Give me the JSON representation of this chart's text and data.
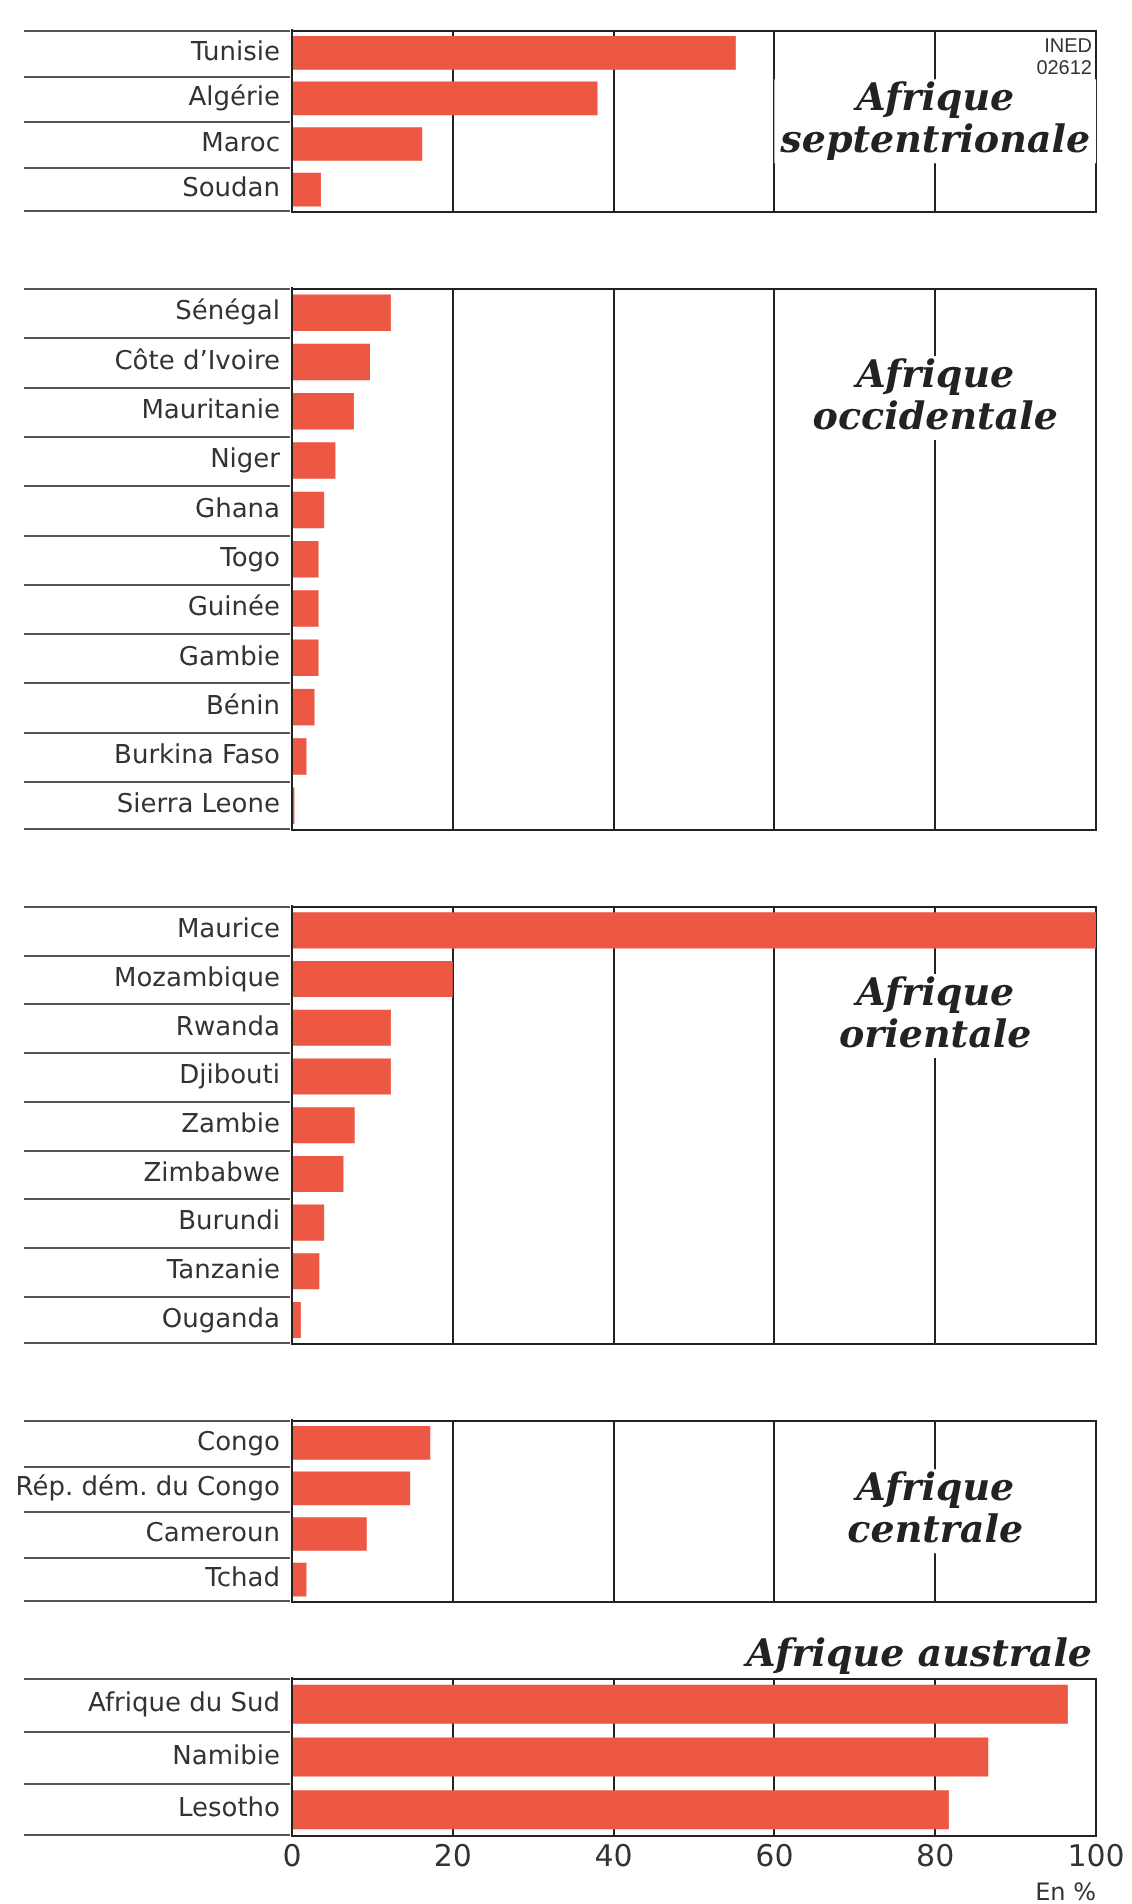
{
  "chart_data": [
    {
      "type": "bar",
      "orientation": "horizontal",
      "title": "Afrique septentrionale",
      "categories": [
        "Tunisie",
        "Algérie",
        "Maroc",
        "Soudan"
      ],
      "values": [
        55.2,
        38,
        16.2,
        3.6
      ],
      "color": "#ec5843",
      "xlim": [
        0,
        100
      ],
      "xticks": [
        0,
        20,
        40,
        60,
        80,
        100
      ],
      "grid": "x",
      "tick_labels": "y",
      "annotations": [
        "INED 02612"
      ]
    },
    {
      "type": "bar",
      "orientation": "horizontal",
      "title": "Afrique occidentale",
      "categories": [
        "Sénégal",
        "Côte d’Ivoire",
        "Mauritanie",
        "Niger",
        "Ghana",
        "Togo",
        "Guinée",
        "Gambie",
        "Bénin",
        "Burkina Faso",
        "Sierra Leone"
      ],
      "values": [
        12.3,
        9.7,
        7.7,
        5.4,
        4,
        3.3,
        3.3,
        3.3,
        2.8,
        1.8,
        0.3
      ],
      "color": "#ec5843",
      "xlim": [
        0,
        100
      ],
      "xticks": [
        0,
        20,
        40,
        60,
        80,
        100
      ],
      "grid": "x",
      "tick_labels": "y"
    },
    {
      "type": "bar",
      "orientation": "horizontal",
      "title": "Afrique orientale",
      "categories": [
        "Maurice",
        "Mozambique",
        "Rwanda",
        "Djibouti",
        "Zambie",
        "Zimbabwe",
        "Burundi",
        "Tanzanie",
        "Ouganda"
      ],
      "values": [
        100,
        20,
        12.3,
        12.3,
        7.8,
        6.4,
        4,
        3.4,
        1.1
      ],
      "color": "#ec5843",
      "xlim": [
        0,
        100
      ],
      "xticks": [
        0,
        20,
        40,
        60,
        80,
        100
      ],
      "grid": "x",
      "tick_labels": "y"
    },
    {
      "type": "bar",
      "orientation": "horizontal",
      "title": "Afrique centrale",
      "categories": [
        "Congo",
        "Rép. dém. du Congo",
        "Cameroun",
        "Tchad"
      ],
      "values": [
        17.2,
        14.7,
        9.3,
        1.8
      ],
      "color": "#ec5843",
      "xlim": [
        0,
        100
      ],
      "xticks": [
        0,
        20,
        40,
        60,
        80,
        100
      ],
      "grid": "x",
      "tick_labels": "y"
    },
    {
      "type": "bar",
      "orientation": "horizontal",
      "title": "Afrique australe",
      "xlabel": "En %",
      "categories": [
        "Afrique du Sud",
        "Namibie",
        "Lesotho"
      ],
      "values": [
        96.5,
        86.6,
        81.7
      ],
      "color": "#ec5843",
      "xlim": [
        0,
        100
      ],
      "xticks": [
        0,
        20,
        40,
        60,
        80,
        100
      ],
      "grid": "x"
    }
  ]
}
